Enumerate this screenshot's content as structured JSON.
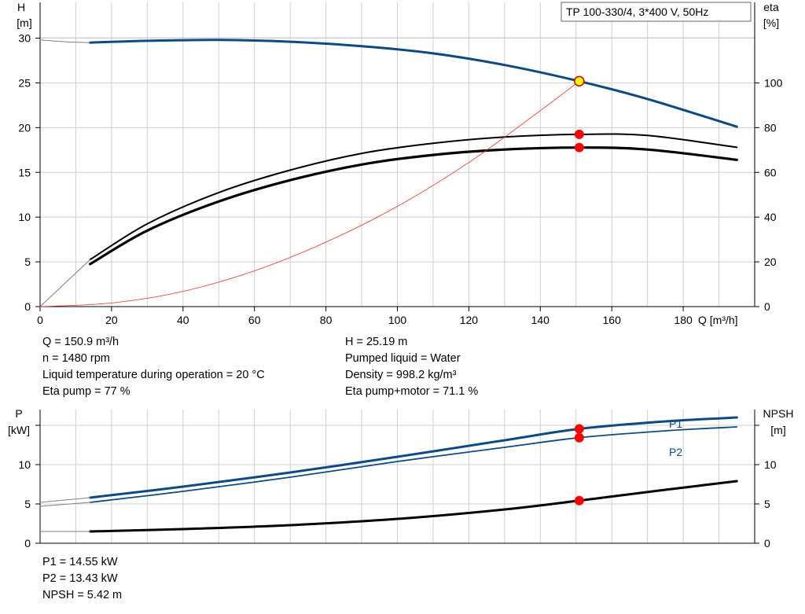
{
  "legend_box": "TP 100-330/4, 3*400 V, 50Hz",
  "chart_data": [
    {
      "type": "line",
      "left_axis": {
        "label": "H",
        "unit": "[m]",
        "ticks": [
          0,
          5,
          10,
          15,
          20,
          25,
          30
        ],
        "range": [
          0,
          34
        ]
      },
      "right_axis": {
        "label": "eta",
        "unit": "[%]",
        "ticks": [
          0,
          20,
          40,
          60,
          80,
          100
        ],
        "range": [
          0,
          136
        ]
      },
      "x_axis": {
        "label": "Q [m³/h]",
        "ticks": [
          0,
          20,
          40,
          60,
          80,
          100,
          120,
          140,
          160,
          180
        ],
        "range": [
          0,
          200
        ]
      },
      "grid": true,
      "series": [
        {
          "key": "H",
          "axis": "left",
          "color": "#0e4a82",
          "x": [
            14,
            30,
            50,
            70,
            90,
            110,
            130,
            150.9,
            170,
            195
          ],
          "y": [
            29.5,
            29.7,
            29.8,
            29.6,
            29.1,
            28.3,
            27.0,
            25.19,
            23.2,
            20.1
          ]
        },
        {
          "key": "H-extrapolated",
          "axis": "left",
          "color": "#808080",
          "x": [
            0,
            7,
            14
          ],
          "y": [
            29.8,
            29.6,
            29.5
          ]
        },
        {
          "key": "eta-pump",
          "axis": "right",
          "color": "#000000",
          "x": [
            14,
            30,
            50,
            70,
            90,
            110,
            130,
            150.9,
            170,
            195
          ],
          "y": [
            21,
            37,
            51,
            61,
            68.5,
            73,
            75.8,
            77,
            76.5,
            71.2
          ]
        },
        {
          "key": "eta-pump+motor",
          "axis": "right",
          "color": "#000000",
          "x": [
            14,
            30,
            50,
            70,
            90,
            110,
            130,
            150.9,
            170,
            195
          ],
          "y": [
            19,
            34,
            47,
            56.5,
            63.5,
            67.8,
            70.2,
            71.1,
            70.2,
            65.6
          ]
        },
        {
          "key": "eta-extrapolated",
          "axis": "right",
          "color": "#808080",
          "x": [
            0,
            7,
            14
          ],
          "y": [
            0,
            10.5,
            21
          ]
        },
        {
          "key": "system-curve",
          "axis": "left",
          "color": "#e8302a",
          "x": [
            0,
            20,
            40,
            60,
            80,
            100,
            120,
            140,
            150.9
          ],
          "y": [
            0,
            0.4,
            1.7,
            4.0,
            7.2,
            11.2,
            16.1,
            21.9,
            25.19
          ]
        }
      ],
      "operating_points": [
        {
          "series": "H",
          "x": 150.9,
          "y": 25.19
        },
        {
          "series": "eta-pump",
          "x": 150.9,
          "y": 77
        },
        {
          "series": "eta-pump+motor",
          "x": 150.9,
          "y": 71.1
        }
      ]
    },
    {
      "type": "line",
      "left_axis": {
        "label": "P",
        "unit": "[kW]",
        "ticks": [
          0,
          5,
          10
        ],
        "range": [
          0,
          17
        ]
      },
      "right_axis": {
        "label": "NPSH",
        "unit": "[m]",
        "ticks": [
          0,
          5,
          10
        ],
        "range": [
          0,
          17
        ]
      },
      "x_axis": {
        "range": [
          0,
          200
        ]
      },
      "grid": true,
      "series": [
        {
          "key": "P1",
          "name": "P1",
          "axis": "left",
          "color": "#0e4a82",
          "x": [
            14,
            40,
            70,
            100,
            130,
            150.9,
            175,
            195
          ],
          "y": [
            5.8,
            7.2,
            9.0,
            11.0,
            13.1,
            14.55,
            15.5,
            16.0
          ]
        },
        {
          "key": "P2",
          "name": "P2",
          "axis": "left",
          "color": "#0e4a82",
          "x": [
            14,
            40,
            70,
            100,
            130,
            150.9,
            175,
            195
          ],
          "y": [
            5.2,
            6.6,
            8.4,
            10.4,
            12.2,
            13.43,
            14.3,
            14.8
          ]
        },
        {
          "key": "P1-extrapolated",
          "axis": "left",
          "color": "#808080",
          "x": [
            0,
            14
          ],
          "y": [
            5.2,
            5.8
          ]
        },
        {
          "key": "P2-extrapolated",
          "axis": "left",
          "color": "#808080",
          "x": [
            0,
            14
          ],
          "y": [
            4.7,
            5.2
          ]
        },
        {
          "key": "NPSH",
          "axis": "right",
          "color": "#000000",
          "x": [
            14,
            40,
            70,
            100,
            130,
            150.9,
            175,
            195
          ],
          "y": [
            1.5,
            1.8,
            2.3,
            3.1,
            4.3,
            5.42,
            6.8,
            7.9
          ]
        },
        {
          "key": "NPSH-extrapolated",
          "axis": "right",
          "color": "#808080",
          "x": [
            0,
            14
          ],
          "y": [
            1.5,
            1.5
          ]
        }
      ],
      "operating_points": [
        {
          "series": "P1",
          "x": 150.9,
          "y": 14.55
        },
        {
          "series": "P2",
          "x": 150.9,
          "y": 13.43
        },
        {
          "series": "NPSH",
          "x": 150.9,
          "y": 5.42
        }
      ]
    }
  ],
  "info_top_left": [
    "Q = 150.9 m³/h",
    "n = 1480 rpm",
    "Liquid temperature during operation = 20 °C",
    "Eta pump = 77 %"
  ],
  "info_top_right": [
    "H = 25.19 m",
    "Pumped liquid = Water",
    "Density = 998.2 kg/m³",
    "Eta pump+motor = 71.1 %"
  ],
  "info_bottom": [
    "P1 = 14.55 kW",
    "P2 = 13.43 kW",
    "NPSH = 5.42 m"
  ]
}
